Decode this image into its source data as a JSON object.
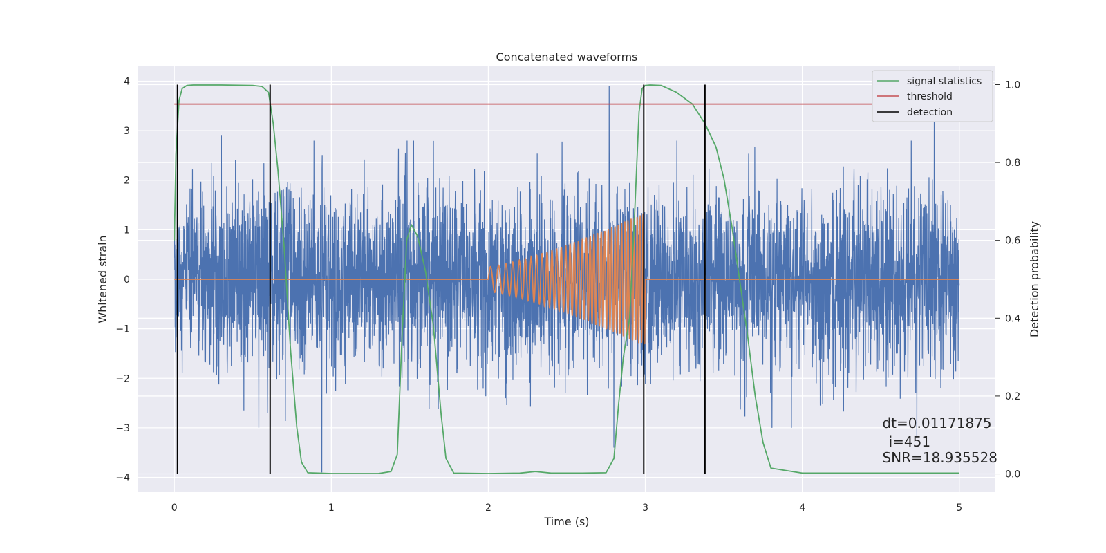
{
  "chart_data": {
    "type": "line",
    "title": "Concatenated waveforms",
    "xlabel": "Time (s)",
    "ylabel_left": "Whitened strain",
    "ylabel_right": "Detection probability",
    "xlim": [
      -0.23,
      5.23
    ],
    "ylim_left": [
      -4.3,
      4.3
    ],
    "ylim_right": [
      -0.047,
      1.047
    ],
    "x_ticks": [
      0,
      1,
      2,
      3,
      4,
      5
    ],
    "y_ticks_left": [
      -4,
      -3,
      -2,
      -1,
      0,
      1,
      2,
      3,
      4
    ],
    "y_ticks_right": [
      0.0,
      0.2,
      0.4,
      0.6,
      0.8,
      1.0
    ],
    "grid": true,
    "legend_position": "top-right",
    "legend": [
      {
        "label": "signal statistics",
        "color": "#55a868"
      },
      {
        "label": "threshold",
        "color": "#c44e52"
      },
      {
        "label": "detection",
        "color": "#000000"
      }
    ],
    "series": [
      {
        "kind": "noise",
        "axis": "left",
        "color": "#4c72b0",
        "x_range": [
          0,
          5
        ],
        "std": 0.9,
        "spike_extremes": [
          {
            "x": 0.3,
            "y": 2.9
          },
          {
            "x": 0.94,
            "y": -3.9
          },
          {
            "x": 2.77,
            "y": 3.9
          },
          {
            "x": 2.8,
            "y": -3.4
          },
          {
            "x": 4.84,
            "y": 3.6
          },
          {
            "x": 4.73,
            "y": -3.2
          }
        ]
      },
      {
        "kind": "injected-signal",
        "axis": "left",
        "color": "#dd8452",
        "x_range": [
          0,
          5
        ],
        "chirp_start": 2.0,
        "chirp_end": 3.0,
        "amp_start": 0.25,
        "amp_end": 1.35
      },
      {
        "name": "signal statistics",
        "axis": "right",
        "color": "#55a868",
        "x": [
          0.0,
          0.01,
          0.03,
          0.05,
          0.08,
          0.12,
          0.3,
          0.5,
          0.56,
          0.6,
          0.63,
          0.66,
          0.7,
          0.74,
          0.78,
          0.81,
          0.85,
          1.0,
          1.3,
          1.38,
          1.42,
          1.45,
          1.48,
          1.51,
          1.55,
          1.6,
          1.65,
          1.7,
          1.73,
          1.78,
          2.0,
          2.2,
          2.3,
          2.4,
          2.6,
          2.75,
          2.8,
          2.83,
          2.86,
          2.9,
          2.93,
          2.96,
          2.98,
          3.0,
          3.03,
          3.1,
          3.2,
          3.3,
          3.38,
          3.45,
          3.5,
          3.55,
          3.6,
          3.65,
          3.7,
          3.75,
          3.8,
          4.0,
          4.5,
          5.0
        ],
        "y": [
          0.6,
          0.82,
          0.96,
          0.99,
          0.998,
          0.999,
          0.999,
          0.998,
          0.995,
          0.98,
          0.9,
          0.78,
          0.58,
          0.32,
          0.12,
          0.03,
          0.003,
          0.001,
          0.001,
          0.006,
          0.05,
          0.35,
          0.6,
          0.64,
          0.61,
          0.52,
          0.38,
          0.15,
          0.04,
          0.002,
          0.001,
          0.002,
          0.006,
          0.002,
          0.002,
          0.003,
          0.04,
          0.18,
          0.3,
          0.4,
          0.65,
          0.93,
          0.99,
          0.998,
          0.999,
          0.998,
          0.98,
          0.95,
          0.9,
          0.84,
          0.76,
          0.64,
          0.5,
          0.36,
          0.2,
          0.08,
          0.015,
          0.002,
          0.002,
          0.002
        ]
      },
      {
        "name": "threshold",
        "axis": "right",
        "color": "#c44e52",
        "x": [
          0,
          5.1
        ],
        "y": [
          0.95,
          0.95
        ]
      }
    ],
    "detections": [
      0.02,
      0.61,
      2.99,
      3.38
    ],
    "annotations": [
      {
        "text": "dt=0.01171875",
        "x": 4.51,
        "y": -3.0
      },
      {
        "text": "i=451",
        "x": 4.55,
        "y": -3.38
      },
      {
        "text": "SNR=18.935528",
        "x": 4.51,
        "y": -3.7
      }
    ]
  }
}
